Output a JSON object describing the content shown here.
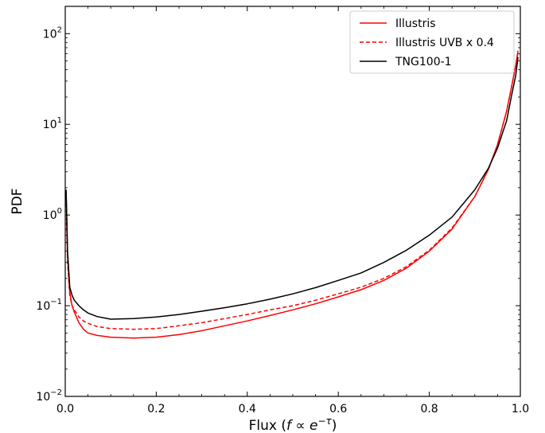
{
  "chart_data": {
    "type": "line",
    "xlabel": "Flux (f ∝ e^{-τ})",
    "xlabel_parts": {
      "prefix": "Flux (",
      "f": "f",
      "prop": " ∝ ",
      "e": "e",
      "exp": "−τ",
      "suffix": ")"
    },
    "ylabel": "PDF",
    "xlim": [
      0.0,
      1.0
    ],
    "ylim": [
      0.01,
      200
    ],
    "yscale": "log",
    "grid": false,
    "legend_position": "upper right",
    "x_ticks": [
      "0.0",
      "0.2",
      "0.4",
      "0.6",
      "0.8",
      "1.0"
    ],
    "y_ticks": [
      {
        "base": "10",
        "exp": "−2"
      },
      {
        "base": "10",
        "exp": "−1"
      },
      {
        "base": "10",
        "exp": "0"
      },
      {
        "base": "10",
        "exp": "1"
      },
      {
        "base": "10",
        "exp": "2"
      }
    ],
    "series": [
      {
        "name": "Illustris",
        "color": "#ff0000",
        "dash": "solid",
        "x": [
          0.002,
          0.005,
          0.01,
          0.015,
          0.02,
          0.03,
          0.04,
          0.05,
          0.07,
          0.1,
          0.15,
          0.2,
          0.25,
          0.3,
          0.35,
          0.4,
          0.45,
          0.5,
          0.55,
          0.6,
          0.65,
          0.7,
          0.75,
          0.8,
          0.85,
          0.9,
          0.93,
          0.95,
          0.97,
          0.98,
          0.99,
          0.995
        ],
        "y": [
          1.8,
          0.35,
          0.14,
          0.1,
          0.085,
          0.065,
          0.055,
          0.05,
          0.047,
          0.045,
          0.044,
          0.045,
          0.048,
          0.053,
          0.06,
          0.068,
          0.078,
          0.09,
          0.105,
          0.125,
          0.15,
          0.19,
          0.26,
          0.4,
          0.7,
          1.6,
          3.2,
          6.0,
          14.0,
          25.0,
          45.0,
          65.0
        ]
      },
      {
        "name": "Illustris UVB x 0.4",
        "color": "#ff0000",
        "dash": "dashed",
        "x": [
          0.002,
          0.005,
          0.01,
          0.015,
          0.02,
          0.03,
          0.04,
          0.05,
          0.07,
          0.1,
          0.15,
          0.2,
          0.25,
          0.3,
          0.35,
          0.4,
          0.45,
          0.5,
          0.55,
          0.6,
          0.65,
          0.7,
          0.75,
          0.8,
          0.85,
          0.9,
          0.93,
          0.95,
          0.97,
          0.98,
          0.99,
          0.995
        ],
        "y": [
          1.6,
          0.3,
          0.13,
          0.1,
          0.09,
          0.075,
          0.068,
          0.064,
          0.059,
          0.056,
          0.055,
          0.056,
          0.06,
          0.065,
          0.072,
          0.08,
          0.09,
          0.1,
          0.115,
          0.135,
          0.16,
          0.2,
          0.27,
          0.41,
          0.72,
          1.6,
          3.2,
          6.0,
          14.0,
          25.0,
          45.0,
          62.0
        ]
      },
      {
        "name": "TNG100-1",
        "color": "#000000",
        "dash": "solid",
        "x": [
          0.002,
          0.005,
          0.01,
          0.015,
          0.02,
          0.03,
          0.04,
          0.05,
          0.07,
          0.1,
          0.15,
          0.2,
          0.25,
          0.3,
          0.35,
          0.4,
          0.45,
          0.5,
          0.55,
          0.6,
          0.65,
          0.7,
          0.75,
          0.8,
          0.85,
          0.9,
          0.93,
          0.95,
          0.97,
          0.98,
          0.99,
          0.995
        ],
        "y": [
          1.9,
          0.4,
          0.16,
          0.13,
          0.115,
          0.1,
          0.09,
          0.083,
          0.076,
          0.071,
          0.072,
          0.075,
          0.08,
          0.087,
          0.095,
          0.105,
          0.118,
          0.135,
          0.158,
          0.19,
          0.23,
          0.3,
          0.41,
          0.6,
          0.95,
          1.9,
          3.3,
          5.5,
          11.0,
          20.0,
          35.0,
          55.0
        ]
      }
    ]
  }
}
